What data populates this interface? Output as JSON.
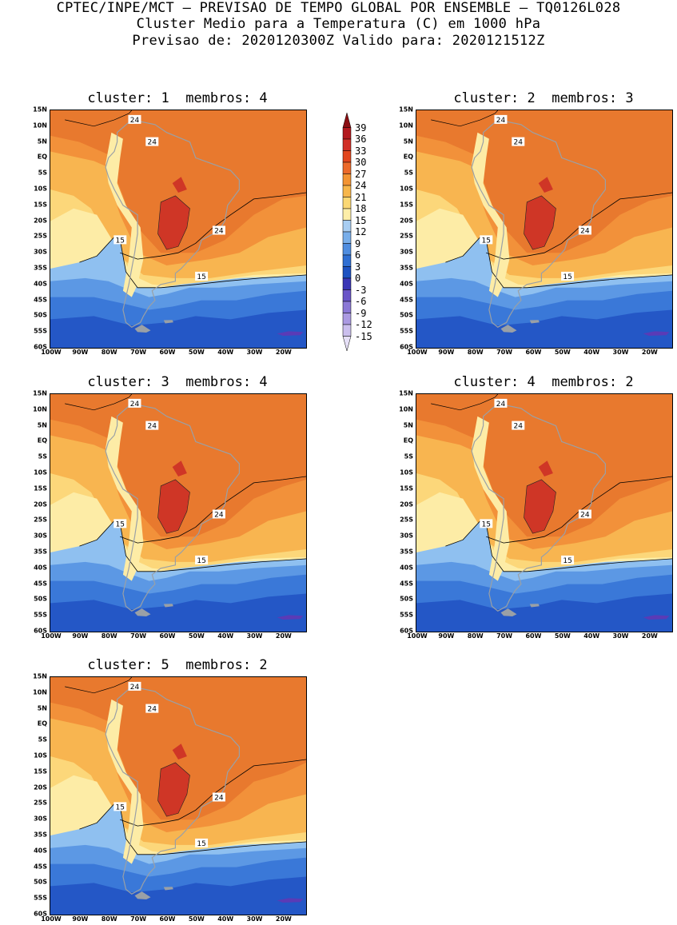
{
  "header": {
    "line1": "CPTEC/INPE/MCT – PREVISAO DE TEMPO GLOBAL POR ENSEMBLE – TQ0126L028",
    "line2": "Cluster Medio para a Temperatura (C) em 1000 hPa",
    "line3": "Previsao de: 2020120300Z   Valido para: 2020121512Z"
  },
  "panels": [
    {
      "title": "cluster: 1  membros: 4"
    },
    {
      "title": "cluster: 2  membros: 3"
    },
    {
      "title": "cluster: 3  membros: 4"
    },
    {
      "title": "cluster: 4  membros: 2"
    },
    {
      "title": "cluster: 5  membros: 2"
    }
  ],
  "lat_labels": [
    "15N",
    "10N",
    "5N",
    "EQ",
    "5S",
    "10S",
    "15S",
    "20S",
    "25S",
    "30S",
    "35S",
    "40S",
    "45S",
    "50S",
    "55S",
    "60S"
  ],
  "lon_labels": [
    "100W",
    "90W",
    "80W",
    "70W",
    "60W",
    "50W",
    "40W",
    "30W",
    "20W"
  ],
  "contour_labels": {
    "c24": "24",
    "c15": "15"
  },
  "colorbar": {
    "levels": [
      "39",
      "36",
      "33",
      "30",
      "27",
      "24",
      "21",
      "18",
      "15",
      "12",
      "9",
      "6",
      "3",
      "0",
      "-3",
      "-6",
      "-9",
      "-12",
      "-15"
    ],
    "colors": [
      "#8b0e12",
      "#b3191e",
      "#d12f26",
      "#e2461e",
      "#ec6a2a",
      "#f39433",
      "#f7b64a",
      "#fbd874",
      "#fdeea8",
      "#a8cdf2",
      "#78aeea",
      "#4f8de0",
      "#2f6fd3",
      "#1d52c2",
      "#3a36b6",
      "#6a55c8",
      "#8b78d6",
      "#ab9ae2",
      "#cbbfee",
      "#e6e0f7"
    ]
  },
  "palette": {
    "orange_hot": "#e8792e",
    "orange": "#f2913a",
    "light_orange": "#f8b550",
    "yellow": "#fcd77a",
    "pale_yellow": "#fdeca6",
    "red": "#cf3626",
    "light_blue": "#8fc0f0",
    "mid_blue": "#5c98e4",
    "blue": "#3a78d8",
    "dark_blue": "#2457c6",
    "purple": "#5a3bb6",
    "coast": "#9aa0a6"
  }
}
